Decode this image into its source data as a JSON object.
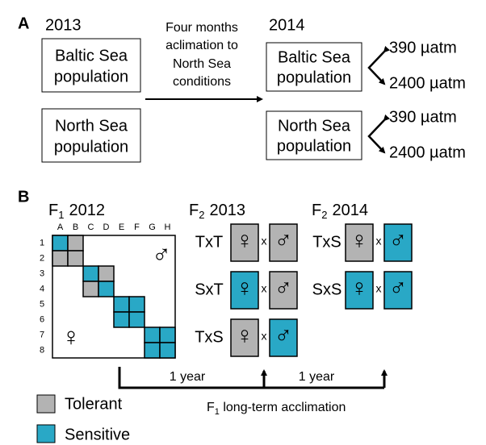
{
  "panel_a": {
    "label": "A",
    "year_left": "2013",
    "year_right": "2014",
    "baltic": [
      "Baltic Sea",
      "population"
    ],
    "north": [
      "North Sea",
      "population"
    ],
    "arrow_text": [
      "Four months",
      "aclimation to",
      "North Sea",
      "conditions"
    ],
    "levels": [
      "390 µatm",
      "2400 µatm"
    ]
  },
  "panel_b": {
    "label": "B",
    "f1_title": {
      "letter": "F",
      "sub": "1",
      "year": "2012"
    },
    "columns": [
      "A",
      "B",
      "C",
      "D",
      "E",
      "F",
      "G",
      "H"
    ],
    "rows": [
      "1",
      "2",
      "3",
      "4",
      "5",
      "6",
      "7",
      "8"
    ],
    "female": "♀",
    "male": "♂",
    "cross": "x",
    "f2_2013": {
      "letter": "F",
      "sub": "2",
      "year": "2013",
      "crosses": [
        "TxT",
        "SxT",
        "TxS"
      ]
    },
    "f2_2014": {
      "letter": "F",
      "sub": "2",
      "year": "2014",
      "crosses": [
        "TxS",
        "SxS"
      ]
    },
    "timeline": {
      "left": "1 year",
      "right": "1 year",
      "caption": {
        "letter": "F",
        "sub": "1",
        "text": " long-term acclimation"
      }
    },
    "legend": {
      "tolerant": "Tolerant",
      "sensitive": "Sensitive"
    }
  }
}
